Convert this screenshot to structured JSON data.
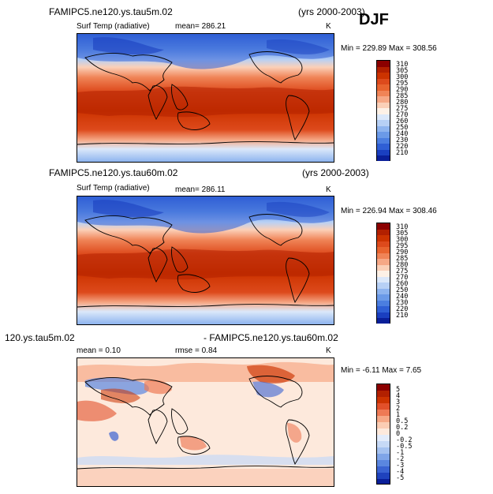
{
  "season": "DJF",
  "panels": [
    {
      "case": "FAMIPC5.ne120.ys.tau5m.02",
      "years": "(yrs 2000-2003)",
      "field": "Surf Temp (radiative)",
      "mean": "mean=  286.21",
      "units": "K",
      "minmax": "Min = 229.89 Max = 308.56",
      "colorbar": {
        "labels": [
          "310",
          "305",
          "300",
          "295",
          "290",
          "285",
          "280",
          "275",
          "270",
          "260",
          "250",
          "240",
          "230",
          "220",
          "210"
        ],
        "colors": [
          "#8b0000",
          "#b22000",
          "#cc3300",
          "#dd4a1c",
          "#e8642f",
          "#f08457",
          "#f6a886",
          "#fbd0b8",
          "#fdf1e6",
          "#dbe8fa",
          "#b7d0f5",
          "#8eb4ef",
          "#6b9ae8",
          "#4b7ee0",
          "#2f5fd5",
          "#1a3fc0",
          "#0a1f99"
        ]
      }
    },
    {
      "case": "FAMIPC5.ne120.ys.tau60m.02",
      "years": "(yrs 2000-2003)",
      "field": "Surf Temp (radiative)",
      "mean": "mean=  286.11",
      "units": "K",
      "minmax": "Min = 226.94 Max = 308.46",
      "colorbar": {
        "labels": [
          "310",
          "305",
          "300",
          "295",
          "290",
          "285",
          "280",
          "275",
          "270",
          "260",
          "250",
          "240",
          "230",
          "220",
          "210"
        ],
        "colors": [
          "#8b0000",
          "#b22000",
          "#cc3300",
          "#dd4a1c",
          "#e8642f",
          "#f08457",
          "#f6a886",
          "#fbd0b8",
          "#fdf1e6",
          "#dbe8fa",
          "#b7d0f5",
          "#8eb4ef",
          "#6b9ae8",
          "#4b7ee0",
          "#2f5fd5",
          "#1a3fc0",
          "#0a1f99"
        ]
      }
    },
    {
      "case_left": "120.ys.tau5m.02",
      "case_right": "- FAMIPC5.ne120.ys.tau60m.02",
      "mean": "mean =    0.10",
      "rmse": "rmse =    0.84",
      "units": "K",
      "minmax": "Min =  -6.11 Max =   7.65",
      "colorbar": {
        "labels": [
          "5",
          "4",
          "3",
          "2",
          "1",
          "0.5",
          "0.2",
          "0",
          "-0.2",
          "-0.5",
          "-1",
          "-2",
          "-3",
          "-4",
          "-5"
        ],
        "colors": [
          "#8b0000",
          "#b22000",
          "#cc3300",
          "#e2502a",
          "#ee7a55",
          "#f6a886",
          "#fbcdb4",
          "#fde9dc",
          "#e3ecfb",
          "#c6d9f6",
          "#a5c2f0",
          "#7fa5e8",
          "#5a86df",
          "#3a63d2",
          "#1f42bd",
          "#0a1f99"
        ]
      }
    }
  ]
}
